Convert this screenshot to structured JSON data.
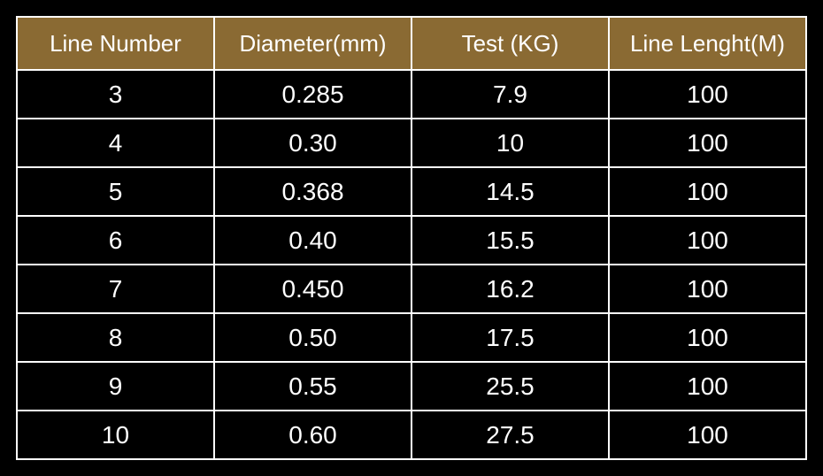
{
  "table": {
    "header_background": "#8a6a33",
    "cell_background": "#000000",
    "text_color": "#ffffff",
    "border_color": "#ffffff",
    "header_fontsize": 26,
    "cell_fontsize": 28,
    "columns": [
      "Line Number",
      "Diameter(mm)",
      "Test (KG)",
      "Line Lenght(M)"
    ],
    "rows": [
      [
        "3",
        "0.285",
        "7.9",
        "100"
      ],
      [
        "4",
        "0.30",
        "10",
        "100"
      ],
      [
        "5",
        "0.368",
        "14.5",
        "100"
      ],
      [
        "6",
        "0.40",
        "15.5",
        "100"
      ],
      [
        "7",
        "0.450",
        "16.2",
        "100"
      ],
      [
        "8",
        "0.50",
        "17.5",
        "100"
      ],
      [
        "9",
        "0.55",
        "25.5",
        "100"
      ],
      [
        "10",
        "0.60",
        "27.5",
        "100"
      ]
    ]
  }
}
